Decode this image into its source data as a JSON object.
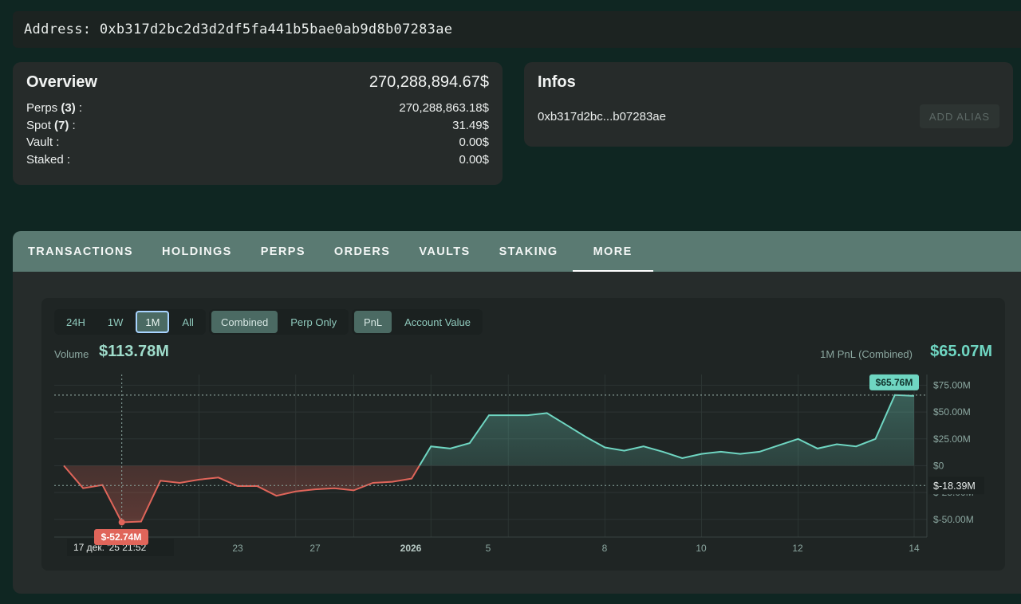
{
  "address": {
    "text": "Address: 0xb317d2bc2d3d2df5fa441b5bae0ab9d8b07283ae"
  },
  "overview": {
    "title": "Overview",
    "total": "270,288,894.67$",
    "rows": [
      {
        "label": "Perps",
        "count": "(3)",
        "suffix": " :",
        "value": "270,288,863.18$"
      },
      {
        "label": "Spot",
        "count": "(7)",
        "suffix": " :",
        "value": "31.49$"
      },
      {
        "label": "Vault :",
        "count": "",
        "suffix": "",
        "value": "0.00$"
      },
      {
        "label": "Staked :",
        "count": "",
        "suffix": "",
        "value": "0.00$"
      }
    ]
  },
  "infos": {
    "title": "Infos",
    "short_address": "0xb317d2bc...b07283ae",
    "add_alias_label": "ADD ALIAS"
  },
  "tabs": [
    "TRANSACTIONS",
    "HOLDINGS",
    "PERPS",
    "ORDERS",
    "VAULTS",
    "STAKING",
    "MORE"
  ],
  "active_tab": "MORE",
  "controls": {
    "range": [
      "24H",
      "1W",
      "1M",
      "All"
    ],
    "range_selected": "1M",
    "mode": [
      "Combined",
      "Perp Only"
    ],
    "mode_selected": "Combined",
    "metric": [
      "PnL",
      "Account Value"
    ],
    "metric_selected": "PnL"
  },
  "summary": {
    "volume_label": "Volume",
    "volume_value": "$113.78M",
    "pnl_label": "1M PnL (Combined)",
    "pnl_value": "$65.07M"
  },
  "colors": {
    "positive": "#6fd6c2",
    "negative": "#e0655a",
    "accent_tab": "#5a7a72"
  },
  "chart_data": {
    "type": "line",
    "series": [
      {
        "values": [
          0,
          -21,
          -18,
          -52.74,
          -52,
          -14,
          -16,
          -13,
          -11,
          -19,
          -19,
          -28,
          -24,
          -22,
          -21,
          -23,
          -16,
          -15,
          -12,
          18,
          16,
          21,
          47,
          47,
          47,
          49,
          38,
          27,
          17,
          14,
          18,
          13,
          7,
          11,
          13,
          11,
          13,
          19,
          25,
          16,
          20,
          18,
          25,
          65.76,
          65.07
        ]
      }
    ],
    "x_ticks": [
      "23",
      "27",
      "2026",
      "5",
      "8",
      "10",
      "12",
      "14"
    ],
    "x_tick_bold": "2026",
    "y_ticks": [
      "$75.00M",
      "$50.00M",
      "$25.00M",
      "$0",
      "$-25.00M",
      "$-50.00M"
    ],
    "ylim": [
      -65,
      79
    ],
    "max_label": "$65.76M",
    "min_label": "$-52.74M",
    "crosshair_value": "$-18.39M",
    "crosshair_date": "17 дек. '25 21:52",
    "grid": true
  }
}
